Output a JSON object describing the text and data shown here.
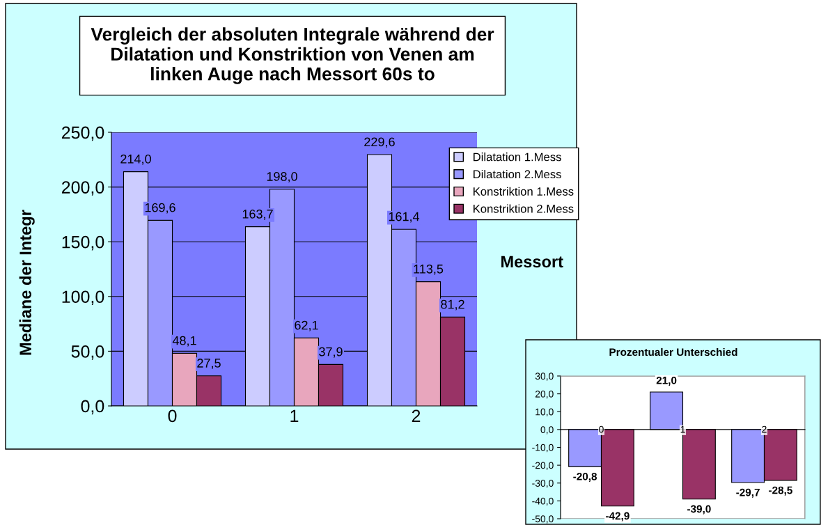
{
  "chart_data": [
    {
      "type": "bar",
      "title": "Vergleich der absoluten Integrale während der Dilatation und Konstriktion von Venen am linken Auge nach Messort 60s to",
      "xlabel": "Messort",
      "ylabel": "Mediane der Integr",
      "categories": [
        "0",
        "1",
        "2"
      ],
      "series": [
        {
          "name": "Dilatation 1.Mess",
          "color": "#ccccff",
          "values": [
            214.0,
            163.7,
            229.6
          ],
          "value_labels": [
            "214,0",
            "163,7",
            "229,6"
          ]
        },
        {
          "name": "Dilatation 2.Mess",
          "color": "#9999ff",
          "values": [
            169.6,
            198.0,
            161.4
          ],
          "value_labels": [
            "169,6",
            "198,0",
            "161,4"
          ]
        },
        {
          "name": "Konstriktion 1.Mess",
          "color": "#e8a6bd",
          "values": [
            48.1,
            62.1,
            113.5
          ],
          "value_labels": [
            "48,1",
            "62,1",
            "113,5"
          ]
        },
        {
          "name": "Konstriktion 2.Mess",
          "color": "#993366",
          "values": [
            27.5,
            37.9,
            81.2
          ],
          "value_labels": [
            "27,5",
            "37,9",
            "81,2"
          ]
        }
      ],
      "ylim": [
        0,
        250
      ],
      "yticks": [
        {
          "value": 0,
          "label": "0,0"
        },
        {
          "value": 50,
          "label": "50,0"
        },
        {
          "value": 100,
          "label": "100,0"
        },
        {
          "value": 150,
          "label": "150,0"
        },
        {
          "value": 200,
          "label": "200,0"
        },
        {
          "value": 250,
          "label": "250,0"
        }
      ],
      "grid": "y",
      "legend": "top right"
    },
    {
      "type": "bar",
      "title": "Prozentualer Unterschied",
      "categories": [
        "0",
        "1",
        "2"
      ],
      "series": [
        {
          "color": "#9999ff",
          "values": [
            -20.8,
            21.0,
            -29.7
          ],
          "value_labels": [
            "-20,8",
            "21,0",
            "-29,7"
          ]
        },
        {
          "color": "#993366",
          "values": [
            -42.9,
            -39.0,
            -28.5
          ],
          "value_labels": [
            "-42,9",
            "-39,0",
            "-28,5"
          ]
        }
      ],
      "ylim": [
        -50,
        30
      ],
      "yticks": [
        {
          "value": -50,
          "label": "-50,0"
        },
        {
          "value": -40,
          "label": "-40,0"
        },
        {
          "value": -30,
          "label": "-30,0"
        },
        {
          "value": -20,
          "label": "-20,0"
        },
        {
          "value": -10,
          "label": "-10,0"
        },
        {
          "value": 0,
          "label": "0,0"
        },
        {
          "value": 10,
          "label": "10,0"
        },
        {
          "value": 20,
          "label": "20,0"
        },
        {
          "value": 30,
          "label": "30,0"
        }
      ]
    }
  ]
}
